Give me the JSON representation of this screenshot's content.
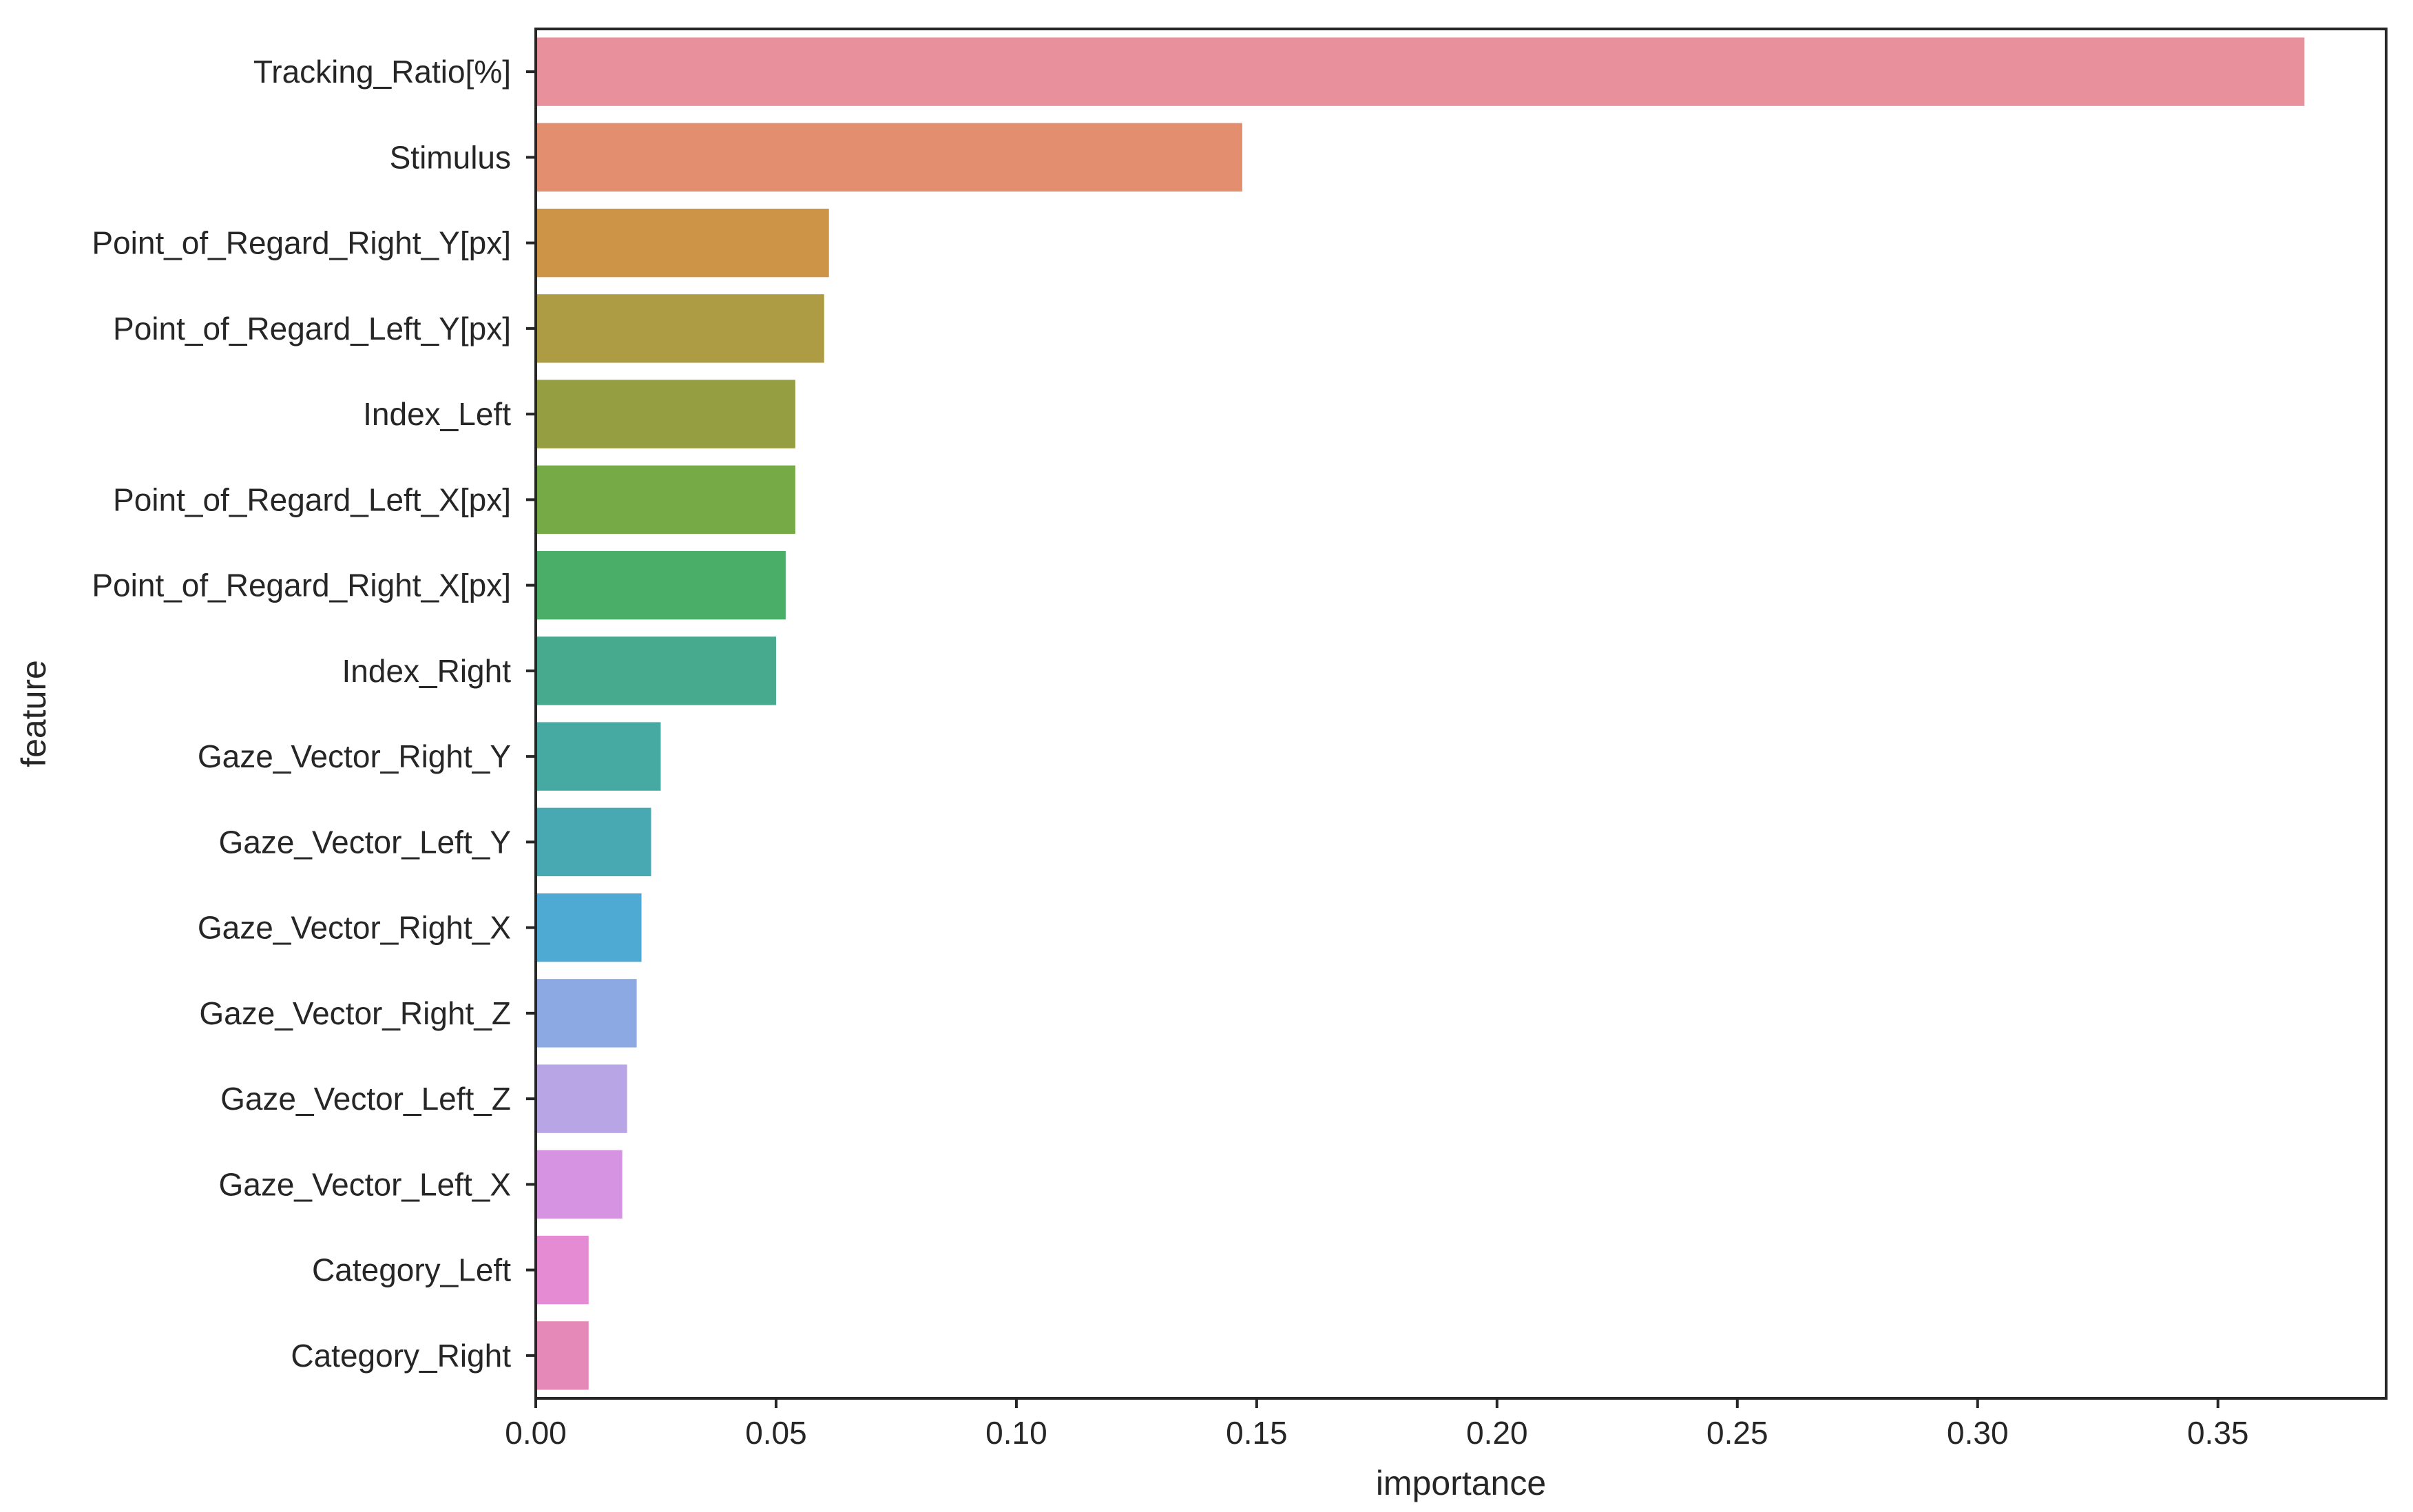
{
  "chart_data": {
    "type": "bar",
    "orientation": "horizontal",
    "title": "",
    "xlabel": "importance",
    "ylabel": "feature",
    "xlim": [
      0.0,
      0.385
    ],
    "xticks": [
      0.0,
      0.05,
      0.1,
      0.15,
      0.2,
      0.25,
      0.3,
      0.35
    ],
    "xtick_labels": [
      "0.00",
      "0.05",
      "0.10",
      "0.15",
      "0.20",
      "0.25",
      "0.30",
      "0.35"
    ],
    "grid": false,
    "categories": [
      "Tracking_Ratio[%]",
      "Stimulus",
      "Point_of_Regard_Right_Y[px]",
      "Point_of_Regard_Left_Y[px]",
      "Index_Left",
      "Point_of_Regard_Left_X[px]",
      "Point_of_Regard_Right_X[px]",
      "Index_Right",
      "Gaze_Vector_Right_Y",
      "Gaze_Vector_Left_Y",
      "Gaze_Vector_Right_X",
      "Gaze_Vector_Right_Z",
      "Gaze_Vector_Left_Z",
      "Gaze_Vector_Left_X",
      "Category_Left",
      "Category_Right"
    ],
    "values": [
      0.368,
      0.147,
      0.061,
      0.06,
      0.054,
      0.054,
      0.052,
      0.05,
      0.026,
      0.024,
      0.022,
      0.021,
      0.019,
      0.018,
      0.011,
      0.011
    ],
    "colors": [
      "#e8909b",
      "#e38e6f",
      "#cd9448",
      "#ad9c44",
      "#959f42",
      "#75aa47",
      "#4aad68",
      "#47a98e",
      "#47aaa2",
      "#49a9b3",
      "#4eaad2",
      "#8ca9e4",
      "#b7a5e6",
      "#d693e2",
      "#e58bd4",
      "#e58ab8"
    ]
  }
}
